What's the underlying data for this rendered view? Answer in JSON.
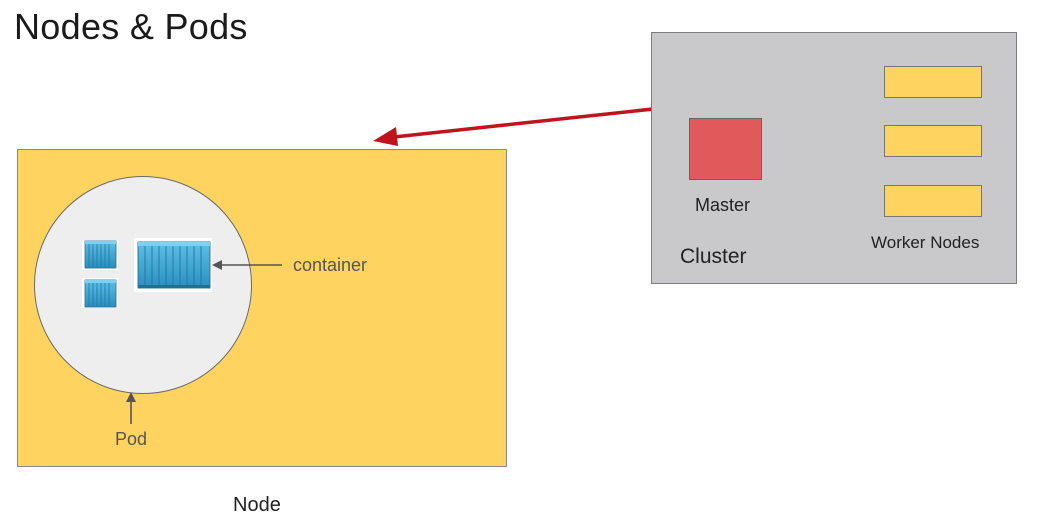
{
  "title": "Nodes & Pods",
  "node": {
    "label": "Node",
    "color": "#ffd35f"
  },
  "pod": {
    "label": "Pod",
    "container_label": "container"
  },
  "cluster": {
    "label": "Cluster",
    "color": "#c9c8ca",
    "master_label": "Master",
    "master_color": "#e05a5c",
    "workers_label": "Worker Nodes",
    "worker_count": 3
  },
  "arrow_color": "#c0141b",
  "container_color": "#3aa6d4"
}
